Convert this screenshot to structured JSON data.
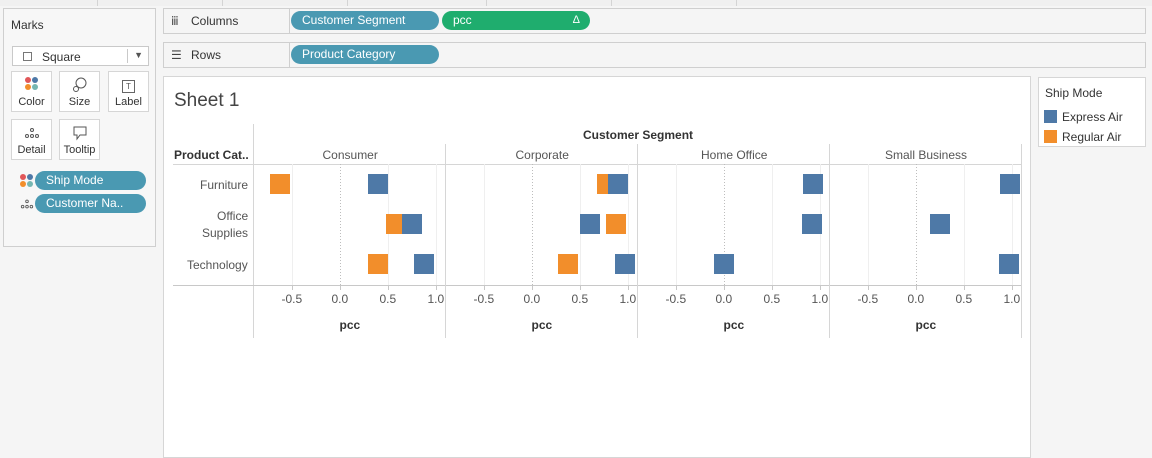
{
  "marks_card": {
    "title": "Marks",
    "mark_type": "Square",
    "buttons": [
      {
        "label": "Color",
        "icon": "color-icon"
      },
      {
        "label": "Size",
        "icon": "size-icon"
      },
      {
        "label": "Label",
        "icon": "label-icon"
      },
      {
        "label": "Detail",
        "icon": "detail-icon"
      },
      {
        "label": "Tooltip",
        "icon": "tooltip-icon"
      }
    ],
    "pills": [
      {
        "label": "Ship Mode",
        "icon": "color-icon"
      },
      {
        "label": "Customer Na..",
        "icon": "detail-icon"
      }
    ]
  },
  "shelves": {
    "columns": {
      "name": "Columns",
      "pills": [
        "Customer Segment",
        "pcc"
      ],
      "delta": "Δ"
    },
    "rows": {
      "name": "Rows",
      "pills": [
        "Product Category"
      ]
    }
  },
  "sheet": {
    "title": "Sheet 1",
    "column_header": "Customer Segment",
    "row_header": "Product Cat..",
    "axis_label": "pcc"
  },
  "legend": {
    "title": "Ship Mode",
    "items": [
      {
        "label": "Express Air",
        "color": "#4e79a7"
      },
      {
        "label": "Regular Air",
        "color": "#f28e2b"
      }
    ]
  },
  "colors": {
    "pill": "#4a99b2",
    "pill_measure": "#1fad6e",
    "express": "#4e79a7",
    "regular": "#f28e2b"
  },
  "chart_data": {
    "type": "scatter",
    "title": "Sheet 1",
    "column_field": "Customer Segment",
    "row_field": "Product Category",
    "panes": [
      "Consumer",
      "Corporate",
      "Home Office",
      "Small Business"
    ],
    "categories": [
      "Furniture",
      "Office Supplies",
      "Technology"
    ],
    "xlabel": "pcc",
    "xticks": [
      "-0.5",
      "0.0",
      "0.5",
      "1.0"
    ],
    "xlim": [
      -0.8,
      1.0
    ],
    "series": [
      {
        "name": "Express Air",
        "color": "#4e79a7",
        "values": [
          [
            0.4,
            0.75,
            0.87
          ],
          [
            0.9,
            0.6,
            0.97
          ],
          [
            0.93,
            0.92,
            0.0
          ],
          [
            0.98,
            0.25,
            0.97
          ]
        ]
      },
      {
        "name": "Regular Air",
        "color": "#f28e2b",
        "values": [
          [
            -0.63,
            0.58,
            0.4
          ],
          [
            0.78,
            0.87,
            0.37
          ],
          [
            null,
            null,
            null
          ],
          [
            null,
            null,
            null
          ]
        ]
      }
    ]
  }
}
